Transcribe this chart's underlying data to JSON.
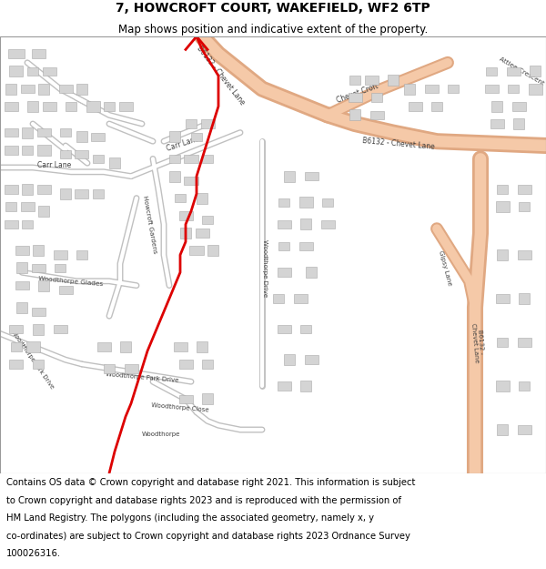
{
  "title": "7, HOWCROFT COURT, WAKEFIELD, WF2 6TP",
  "subtitle": "Map shows position and indicative extent of the property.",
  "footer_line1": "Contains OS data © Crown copyright and database right 2021. This information is subject",
  "footer_line2": "to Crown copyright and database rights 2023 and is reproduced with the permission of",
  "footer_line3": "HM Land Registry. The polygons (including the associated geometry, namely x, y",
  "footer_line4": "co-ordinates) are subject to Crown copyright and database rights 2023 Ordnance Survey",
  "footer_line5": "100026316.",
  "title_fontsize": 10,
  "subtitle_fontsize": 8.5,
  "footer_fontsize": 7.2,
  "bg_color": "#ffffff",
  "map_bg": "#f2f2f2",
  "road_color_major": "#f5c9a8",
  "road_outline_major": "#e0a882",
  "road_color_minor": "#ffffff",
  "road_outline_minor": "#c0c0c0",
  "building_color": "#d4d4d4",
  "building_outline": "#aaaaaa",
  "red_line_color": "#dd0000",
  "title_color": "#000000",
  "footer_color": "#000000",
  "label_color": "#404040",
  "label_fontsize": 5.8
}
